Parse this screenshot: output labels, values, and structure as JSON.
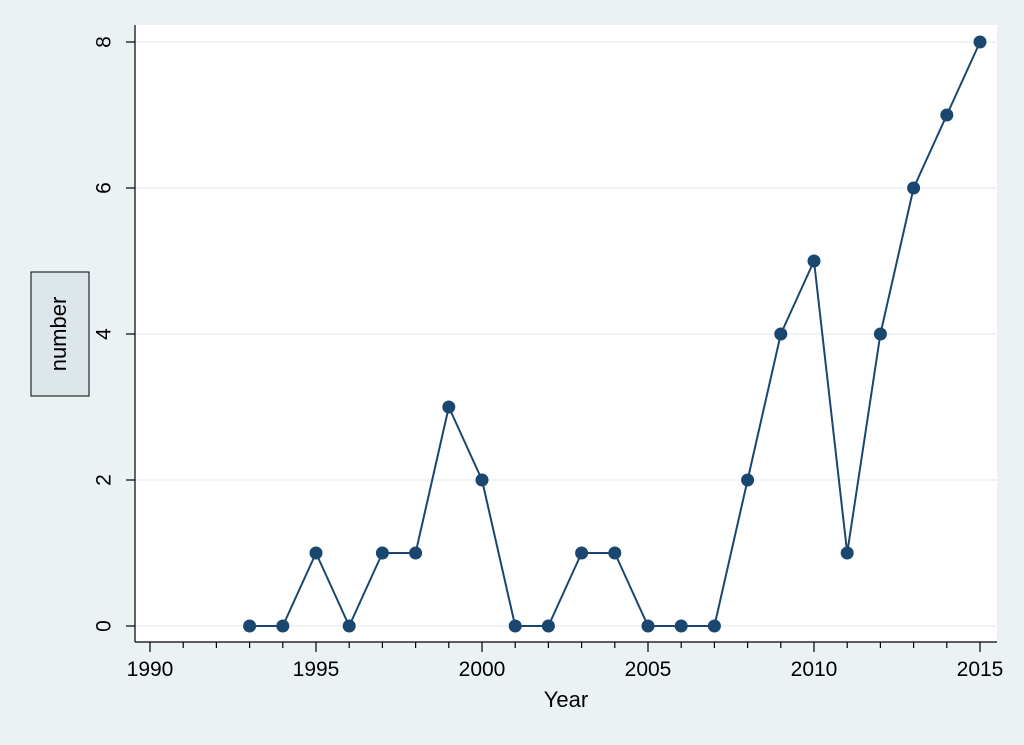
{
  "chart_data": {
    "type": "line",
    "title": "",
    "xlabel": "Year",
    "ylabel": "number",
    "xlim": [
      1990,
      2015
    ],
    "ylim": [
      0,
      8
    ],
    "xticks": [
      1990,
      1995,
      2000,
      2005,
      2010,
      2015
    ],
    "yticks": [
      0,
      2,
      4,
      6,
      8
    ],
    "grid": "horizontal",
    "x": [
      1993,
      1994,
      1995,
      1996,
      1997,
      1998,
      1999,
      2000,
      2001,
      2002,
      2003,
      2004,
      2005,
      2006,
      2007,
      2008,
      2009,
      2010,
      2011,
      2012,
      2013,
      2014,
      2015
    ],
    "series": [
      {
        "values": [
          0,
          0,
          1,
          0,
          1,
          1,
          3,
          2,
          0,
          0,
          1,
          1,
          0,
          0,
          0,
          2,
          4,
          5,
          1,
          4,
          6,
          7,
          8
        ],
        "color": "#1a476f"
      }
    ],
    "colors": {
      "background": "#eaf2f3",
      "plot_area": "#ffffff",
      "grid": "#eaf2f3",
      "axis": "#000000",
      "ylabel_box": "#dde6ea"
    }
  }
}
